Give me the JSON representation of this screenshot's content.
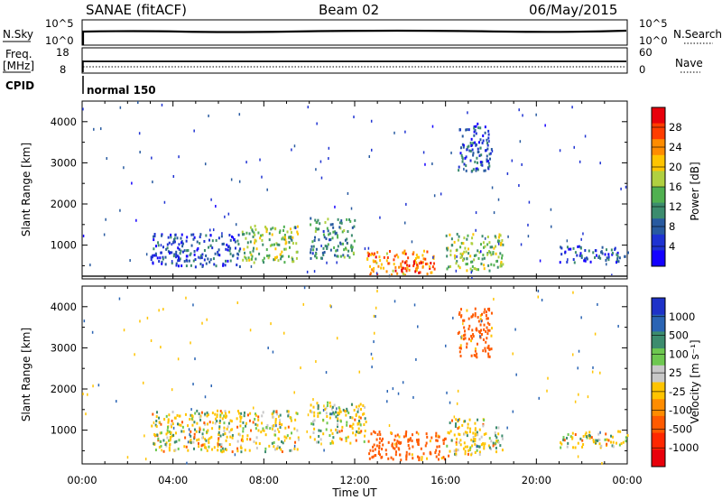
{
  "header": {
    "station": "SANAE (fitACF)",
    "beam": "Beam 02",
    "date": "06/May/2015"
  },
  "panels": {
    "noise": {
      "left_label": "N.Sky",
      "left_ticks": [
        "10^5",
        "10^0"
      ],
      "right_label": "N.Search",
      "right_ticks": [
        "10^5",
        "10^0"
      ]
    },
    "freq": {
      "left_label_1": "Freq.",
      "left_label_2": "[MHz]",
      "left_ticks": [
        "18",
        "8"
      ],
      "right_label": "Nave",
      "right_ticks": [
        "60",
        "0"
      ]
    },
    "cpid": {
      "label": "CPID",
      "value": "normal 150"
    }
  },
  "colorbars": {
    "power": {
      "label": "Power [dB]",
      "ticks": [
        "28",
        "24",
        "20",
        "16",
        "12",
        "8",
        "4"
      ],
      "colors": [
        "#e8000b",
        "#ff3d00",
        "#ff8c00",
        "#ffc400",
        "#b0d040",
        "#50b050",
        "#3c8c6e",
        "#285aa0",
        "#1e32d2",
        "#1400ff"
      ]
    },
    "velocity": {
      "label": "Velocity [m s⁻¹]",
      "ticks": [
        "1000",
        "500",
        "100",
        "25",
        "-25",
        "-100",
        "-500",
        "-1000"
      ],
      "colors": [
        "#1e32c8",
        "#2a64b4",
        "#3c8c6e",
        "#6ec850",
        "#c8c8c8",
        "#ffc400",
        "#ff8c00",
        "#ff5a00",
        "#ff2800",
        "#e8000b"
      ]
    }
  },
  "axes": {
    "ylabel": "Slant Range [km]",
    "xlabel": "Time UT",
    "xticks": [
      "00:00",
      "04:00",
      "08:00",
      "12:00",
      "16:00",
      "20:00",
      "00:00"
    ],
    "yticks": [
      "1000",
      "2000",
      "3000",
      "4000"
    ]
  },
  "chart_data": [
    {
      "type": "heatmap",
      "name": "power",
      "x_range_hours": [
        0,
        24
      ],
      "y_range_km": [
        180,
        4500
      ],
      "value_range_db": [
        0,
        30
      ],
      "regions": [
        {
          "t": [
            3.0,
            7.0
          ],
          "r": [
            500,
            1300
          ],
          "v": 8
        },
        {
          "t": [
            7.0,
            9.5
          ],
          "r": [
            600,
            1500
          ],
          "v": 16
        },
        {
          "t": [
            10.0,
            12.0
          ],
          "r": [
            700,
            1700
          ],
          "v": 12
        },
        {
          "t": [
            12.5,
            15.5
          ],
          "r": [
            300,
            900
          ],
          "v": 24
        },
        {
          "t": [
            14.0,
            15.0
          ],
          "r": [
            350,
            650
          ],
          "v": 28
        },
        {
          "t": [
            16.0,
            18.5
          ],
          "r": [
            400,
            1300
          ],
          "v": 16
        },
        {
          "t": [
            16.5,
            18.0
          ],
          "r": [
            2800,
            4000
          ],
          "v": 8
        },
        {
          "t": [
            21.0,
            24.0
          ],
          "r": [
            600,
            1000
          ],
          "v": 8
        }
      ]
    },
    {
      "type": "heatmap",
      "name": "velocity",
      "x_range_hours": [
        0,
        24
      ],
      "y_range_km": [
        180,
        4500
      ],
      "value_range_ms": [
        -1000,
        1000
      ],
      "regions": [
        {
          "t": [
            3.0,
            9.5
          ],
          "r": [
            500,
            1500
          ],
          "v": -100
        },
        {
          "t": [
            10.0,
            12.5
          ],
          "r": [
            700,
            1700
          ],
          "v": -100
        },
        {
          "t": [
            12.5,
            16.0
          ],
          "r": [
            300,
            1000
          ],
          "v": -500
        },
        {
          "t": [
            16.0,
            18.5
          ],
          "r": [
            400,
            1300
          ],
          "v": -100
        },
        {
          "t": [
            16.5,
            18.0
          ],
          "r": [
            2800,
            4000
          ],
          "v": -500
        },
        {
          "t": [
            21.0,
            24.0
          ],
          "r": [
            600,
            1000
          ],
          "v": -100
        }
      ]
    }
  ]
}
